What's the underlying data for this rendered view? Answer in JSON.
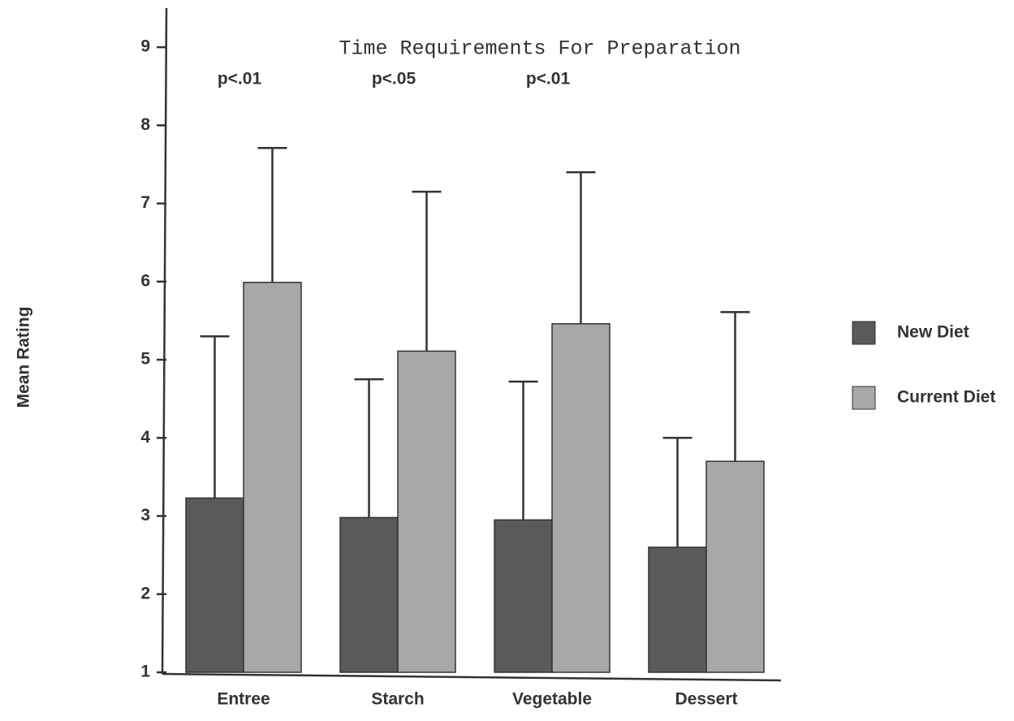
{
  "chart_data": {
    "type": "bar",
    "title": "Time Requirements For Preparation",
    "y_label": "Mean Rating",
    "categories": [
      "Entree",
      "Starch",
      "Vegetable",
      "Dessert"
    ],
    "annotations": [
      "p<.01",
      "p<.05",
      "p<.01",
      null
    ],
    "series": [
      {
        "name": "New Diet",
        "color": "#5a5a5a",
        "values": [
          3.23,
          2.98,
          2.95,
          2.6
        ],
        "errors": [
          2.07,
          1.77,
          1.77,
          1.4
        ]
      },
      {
        "name": "Current Diet",
        "color": "#a8a8a8",
        "values": [
          5.99,
          5.11,
          5.46,
          3.7
        ],
        "errors": [
          1.72,
          2.04,
          1.94,
          1.91
        ]
      }
    ],
    "ylim": [
      1,
      9.5
    ],
    "yticks": [
      1,
      2,
      3,
      4,
      5,
      6,
      7,
      8,
      9
    ],
    "grid": false,
    "legend": "right"
  }
}
